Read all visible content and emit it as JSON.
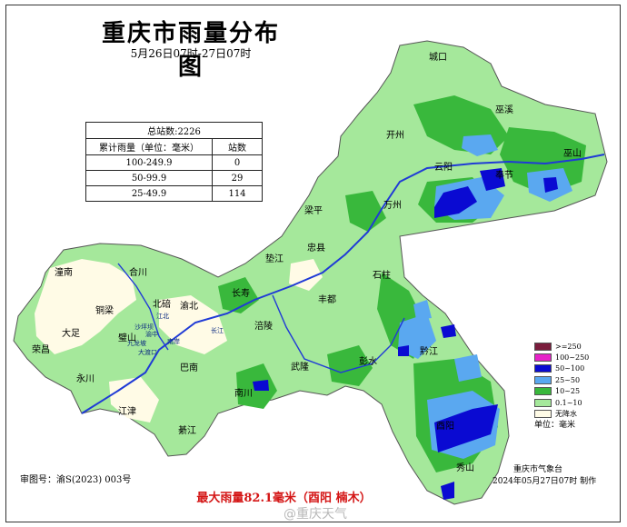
{
  "title": "重庆市雨量分布图",
  "subtitle": "5月26日07时-27日07时",
  "stats": {
    "total_label": "总站数:2226",
    "col_range": "累计雨量（单位：毫米）",
    "col_count": "站数",
    "rows": [
      {
        "range": "100-249.9",
        "count": "0"
      },
      {
        "range": "50-99.9",
        "count": "29"
      },
      {
        "range": "25-49.9",
        "count": "114"
      }
    ]
  },
  "legend": {
    "items": [
      {
        "label": ">=250",
        "color": "#7a1c3c"
      },
      {
        "label": "100~250",
        "color": "#e623c8"
      },
      {
        "label": "50~100",
        "color": "#0a0ad2"
      },
      {
        "label": "25~50",
        "color": "#5aa8f0"
      },
      {
        "label": "10~25",
        "color": "#39b83c"
      },
      {
        "label": "0.1~10",
        "color": "#a5e89b"
      },
      {
        "label": "无降水",
        "color": "#fffbe6"
      }
    ],
    "unit": "单位：毫米"
  },
  "org": "重庆市气象台",
  "made": "2024年05月27日07时 制作",
  "map_no": "审图号：渝S(2023) 003号",
  "max_rain": "最大雨量82.1毫米（酉阳 楠木）",
  "watermark": "@重庆天气",
  "places": {
    "chengkou": "城口",
    "wuxi": "巫溪",
    "kaizhou": "开州",
    "wushan": "巫山",
    "yunyang": "云阳",
    "fengjie": "奉节",
    "wanzhou": "万州",
    "liangping": "梁平",
    "zhongxian": "忠县",
    "dianjiang": "垫江",
    "shizhu": "石柱",
    "changshou": "长寿",
    "fengdu": "丰都",
    "tongnan": "潼南",
    "hechuan": "合川",
    "beibei": "北碚",
    "yubei": "渝北",
    "tongliang": "铜梁",
    "bishan": "璧山",
    "dazu": "大足",
    "rongchang": "荣昌",
    "yongchuan": "永川",
    "fuling": "涪陵",
    "banan": "巴南",
    "wulong": "武隆",
    "pengshui": "彭水",
    "qianjiang": "黔江",
    "nanchuan": "南川",
    "jiangjin": "江津",
    "qijiang": "綦江",
    "youyang": "酉阳",
    "xiushan": "秀山"
  },
  "small_places": {
    "jiangbei": "江北",
    "shapingba": "沙坪坝",
    "yuzhong": "渝中",
    "nanan": "南岸",
    "dadukou": "大渡口",
    "jiulongpo": "九龙坡",
    "changjiang": "长江"
  }
}
